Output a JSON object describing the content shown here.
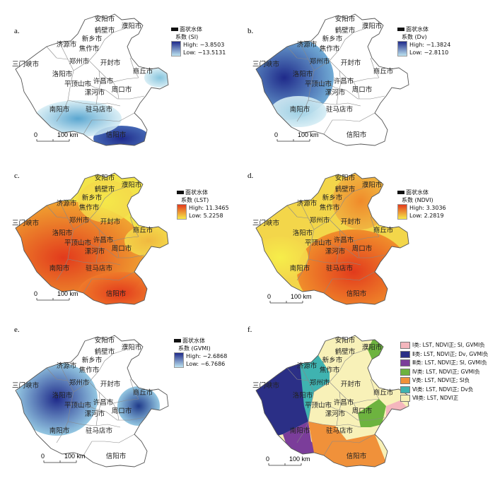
{
  "common": {
    "water_label": "面状水体",
    "scale_zero": "0",
    "scale_len": "100 km",
    "high_prefix": "High: ",
    "low_prefix": "Low: "
  },
  "cities": [
    {
      "name": "安阳市"
    },
    {
      "name": "濮阳市"
    },
    {
      "name": "鹤壁市"
    },
    {
      "name": "新乡市"
    },
    {
      "name": "济源市"
    },
    {
      "name": "焦作市"
    },
    {
      "name": "三门峡市"
    },
    {
      "name": "郑州市"
    },
    {
      "name": "开封市"
    },
    {
      "name": "商丘市"
    },
    {
      "name": "洛阳市"
    },
    {
      "name": "许昌市"
    },
    {
      "name": "平顶山市"
    },
    {
      "name": "漯河市"
    },
    {
      "name": "周口市"
    },
    {
      "name": "南阳市"
    },
    {
      "name": "驻马店市"
    },
    {
      "name": "信阳市"
    }
  ],
  "panels": [
    {
      "id": "a",
      "label": "a.",
      "coef": "系数 (SI)",
      "high": "−3.8503",
      "low": "−13.5131",
      "ramp": [
        "#1f2a8a",
        "#bde3f0"
      ]
    },
    {
      "id": "b",
      "label": "b.",
      "coef": "系数 (Dv)",
      "high": "−1.3824",
      "low": "−2.8110",
      "ramp": [
        "#1f2a8a",
        "#bde3f0"
      ]
    },
    {
      "id": "c",
      "label": "c.",
      "coef": "系数 (LST)",
      "high": "11.3465",
      "low": "5.2258",
      "ramp": [
        "#e23a1c",
        "#f6e94a"
      ]
    },
    {
      "id": "d",
      "label": "d.",
      "coef": "系数 (NDVI)",
      "high": "3.3036",
      "low": "2.2819",
      "ramp": [
        "#e23a1c",
        "#f6e94a"
      ]
    },
    {
      "id": "e",
      "label": "e.",
      "coef": "系数 (GVMI)",
      "high": "−2.6868",
      "low": "−6.7686",
      "ramp": [
        "#1f2a8a",
        "#bde3f0"
      ]
    },
    {
      "id": "f",
      "label": "f."
    }
  ],
  "classes": [
    {
      "label": "Ⅰ类: LST, NDVI正; SI, GVMI负",
      "color": "#f4b6bd"
    },
    {
      "label": "Ⅱ类: LST, NDVI正; Dv, GVMI负",
      "color": "#2b2f86"
    },
    {
      "label": "Ⅲ类: LST, NDVI正; SI, GVMI负",
      "color": "#7b3d9a"
    },
    {
      "label": "Ⅳ类: LST, NDVI正; GVMI负",
      "color": "#6db33f"
    },
    {
      "label": "Ⅴ类: LST, NDVI正; SI负",
      "color": "#f0913a"
    },
    {
      "label": "Ⅵ类: LST, NDVI正; Dv负",
      "color": "#3fb3b0"
    },
    {
      "label": "Ⅶ类: LST, NDVI正",
      "color": "#f8f1b8"
    }
  ]
}
